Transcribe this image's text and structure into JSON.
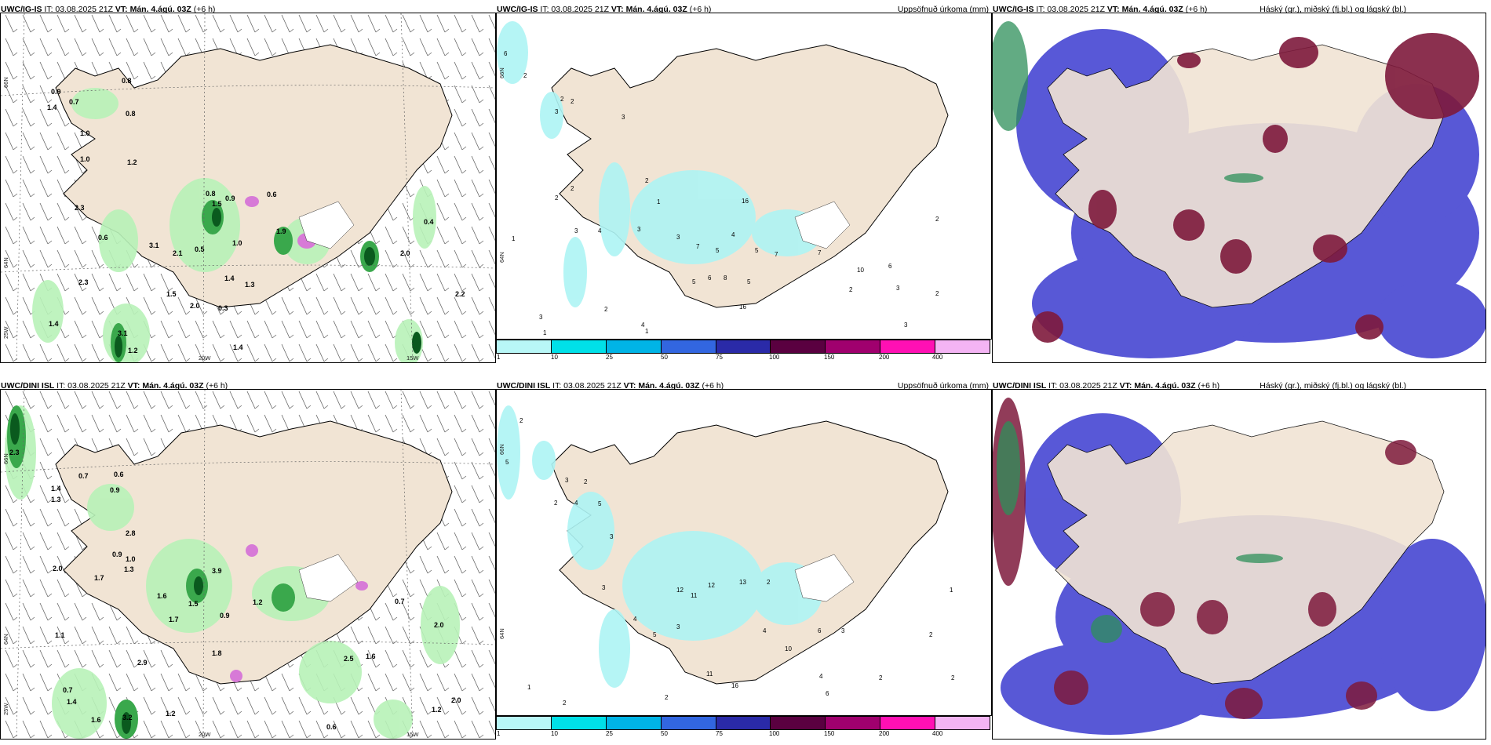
{
  "panels": [
    {
      "title_model": "UWC/IG-IS",
      "title_it": "IT: 03.08.2025 21Z",
      "title_vt": "VT: Mán. 4.ágú. 03Z",
      "title_lead": "(+6 h)",
      "right_label": ""
    },
    {
      "title_model": "UWC/IG-IS",
      "title_it": "IT: 03.08.2025 21Z",
      "title_vt": "VT: Mán. 4.ágú. 03Z",
      "title_lead": "(+6 h)",
      "right_label": "Uppsöfnuð úrkoma (mm)"
    },
    {
      "title_model": "UWC/IG-IS",
      "title_it": "IT: 03.08.2025 21Z",
      "title_vt": "VT: Mán. 4.ágú. 03Z",
      "title_lead": "(+6 h)",
      "right_label": "Háský (gr.), miðský (fj.bl.) og lágský (bl.)"
    },
    {
      "title_model": "UWC/DINI ISL",
      "title_it": "IT: 03.08.2025 21Z",
      "title_vt": "VT: Mán. 4.ágú. 03Z",
      "title_lead": "(+6 h)",
      "right_label": ""
    },
    {
      "title_model": "UWC/DINI ISL",
      "title_it": "IT: 03.08.2025 21Z",
      "title_vt": "VT: Mán. 4.ágú. 03Z",
      "title_lead": "(+6 h)",
      "right_label": "Uppsöfnuð úrkoma (mm)"
    },
    {
      "title_model": "UWC/DINI ISL",
      "title_it": "IT: 03.08.2025 21Z",
      "title_vt": "VT: Mán. 4.ágú. 03Z",
      "title_lead": "(+6 h)",
      "right_label": "Háský (gr.), miðský (fj.bl.) og lágský (bl.)"
    }
  ],
  "axis_labels": {
    "lat_66": "66N",
    "lat_64": "64N",
    "lon_25": "25W",
    "lon_20": "20W",
    "lon_15": "15W"
  },
  "colorbar": {
    "ticks": [
      "1",
      "10",
      "25",
      "50",
      "75",
      "100",
      "150",
      "200",
      "400"
    ],
    "colors": [
      "#b8f7f7",
      "#00e0e8",
      "#00b4e6",
      "#3266e0",
      "#2a2aa8",
      "#5a0040",
      "#a0006e",
      "#ff10b4",
      "#f4b4f4"
    ]
  },
  "colors": {
    "land": "#f1e4d4",
    "coast": "#000000",
    "precip_light": "#b8f2b8",
    "precip_mid": "#3aa84c",
    "precip_heavy": "#0a5a1e",
    "rain_cyan": "#aef4f4",
    "cloud_low": "#3b3bd0",
    "cloud_mid": "#7e1a3c",
    "cloud_high": "#2e8f5a"
  },
  "labels_top_left": [
    "0.9",
    "0.7",
    "0.8",
    "1.4",
    "0.8",
    "1.0",
    "1.0",
    "1.2",
    "0.6",
    "0.8",
    "0.9",
    "0.6",
    "1.5",
    "2.3",
    "3.1",
    "0.5",
    "1.0",
    "1.9",
    "2.1",
    "2.0",
    "1.4",
    "1.3",
    "0.3",
    "1.5",
    "2.0",
    "2.3",
    "1.4",
    "3.1",
    "1.2",
    "1.4",
    "2.2",
    "0.4"
  ],
  "labels_top_mid": [
    "6",
    "2",
    "2",
    "2",
    "3",
    "3",
    "2",
    "2",
    "1",
    "4",
    "3",
    "16",
    "2",
    "3",
    "4",
    "3",
    "7",
    "5",
    "7",
    "7",
    "5",
    "6",
    "5",
    "10",
    "5",
    "2",
    "2",
    "3",
    "1",
    "4",
    "3",
    "1",
    "16",
    "6",
    "8",
    "2",
    "3",
    "1",
    "2"
  ],
  "labels_bot_left": [
    "2.3",
    "0.7",
    "0.6",
    "1.4",
    "0.9",
    "1.3",
    "2.8",
    "0.9",
    "1.0",
    "1.3",
    "2.0",
    "1.7",
    "3.9",
    "1.6",
    "1.2",
    "1.5",
    "1.7",
    "0.9",
    "2.5",
    "1.6",
    "0.7",
    "2.0",
    "1.1",
    "0.7",
    "1.4",
    "1.6",
    "3.2",
    "1.2",
    "2.9",
    "1.8",
    "0.6",
    "1.2",
    "2.0"
  ],
  "labels_bot_mid": [
    "2",
    "5",
    "3",
    "2",
    "4",
    "5",
    "2",
    "3",
    "12",
    "11",
    "12",
    "13",
    "2",
    "3",
    "4",
    "3",
    "5",
    "10",
    "6",
    "4",
    "3",
    "2",
    "1",
    "2",
    "4",
    "11",
    "16",
    "6",
    "2",
    "2",
    "2",
    "1"
  ]
}
